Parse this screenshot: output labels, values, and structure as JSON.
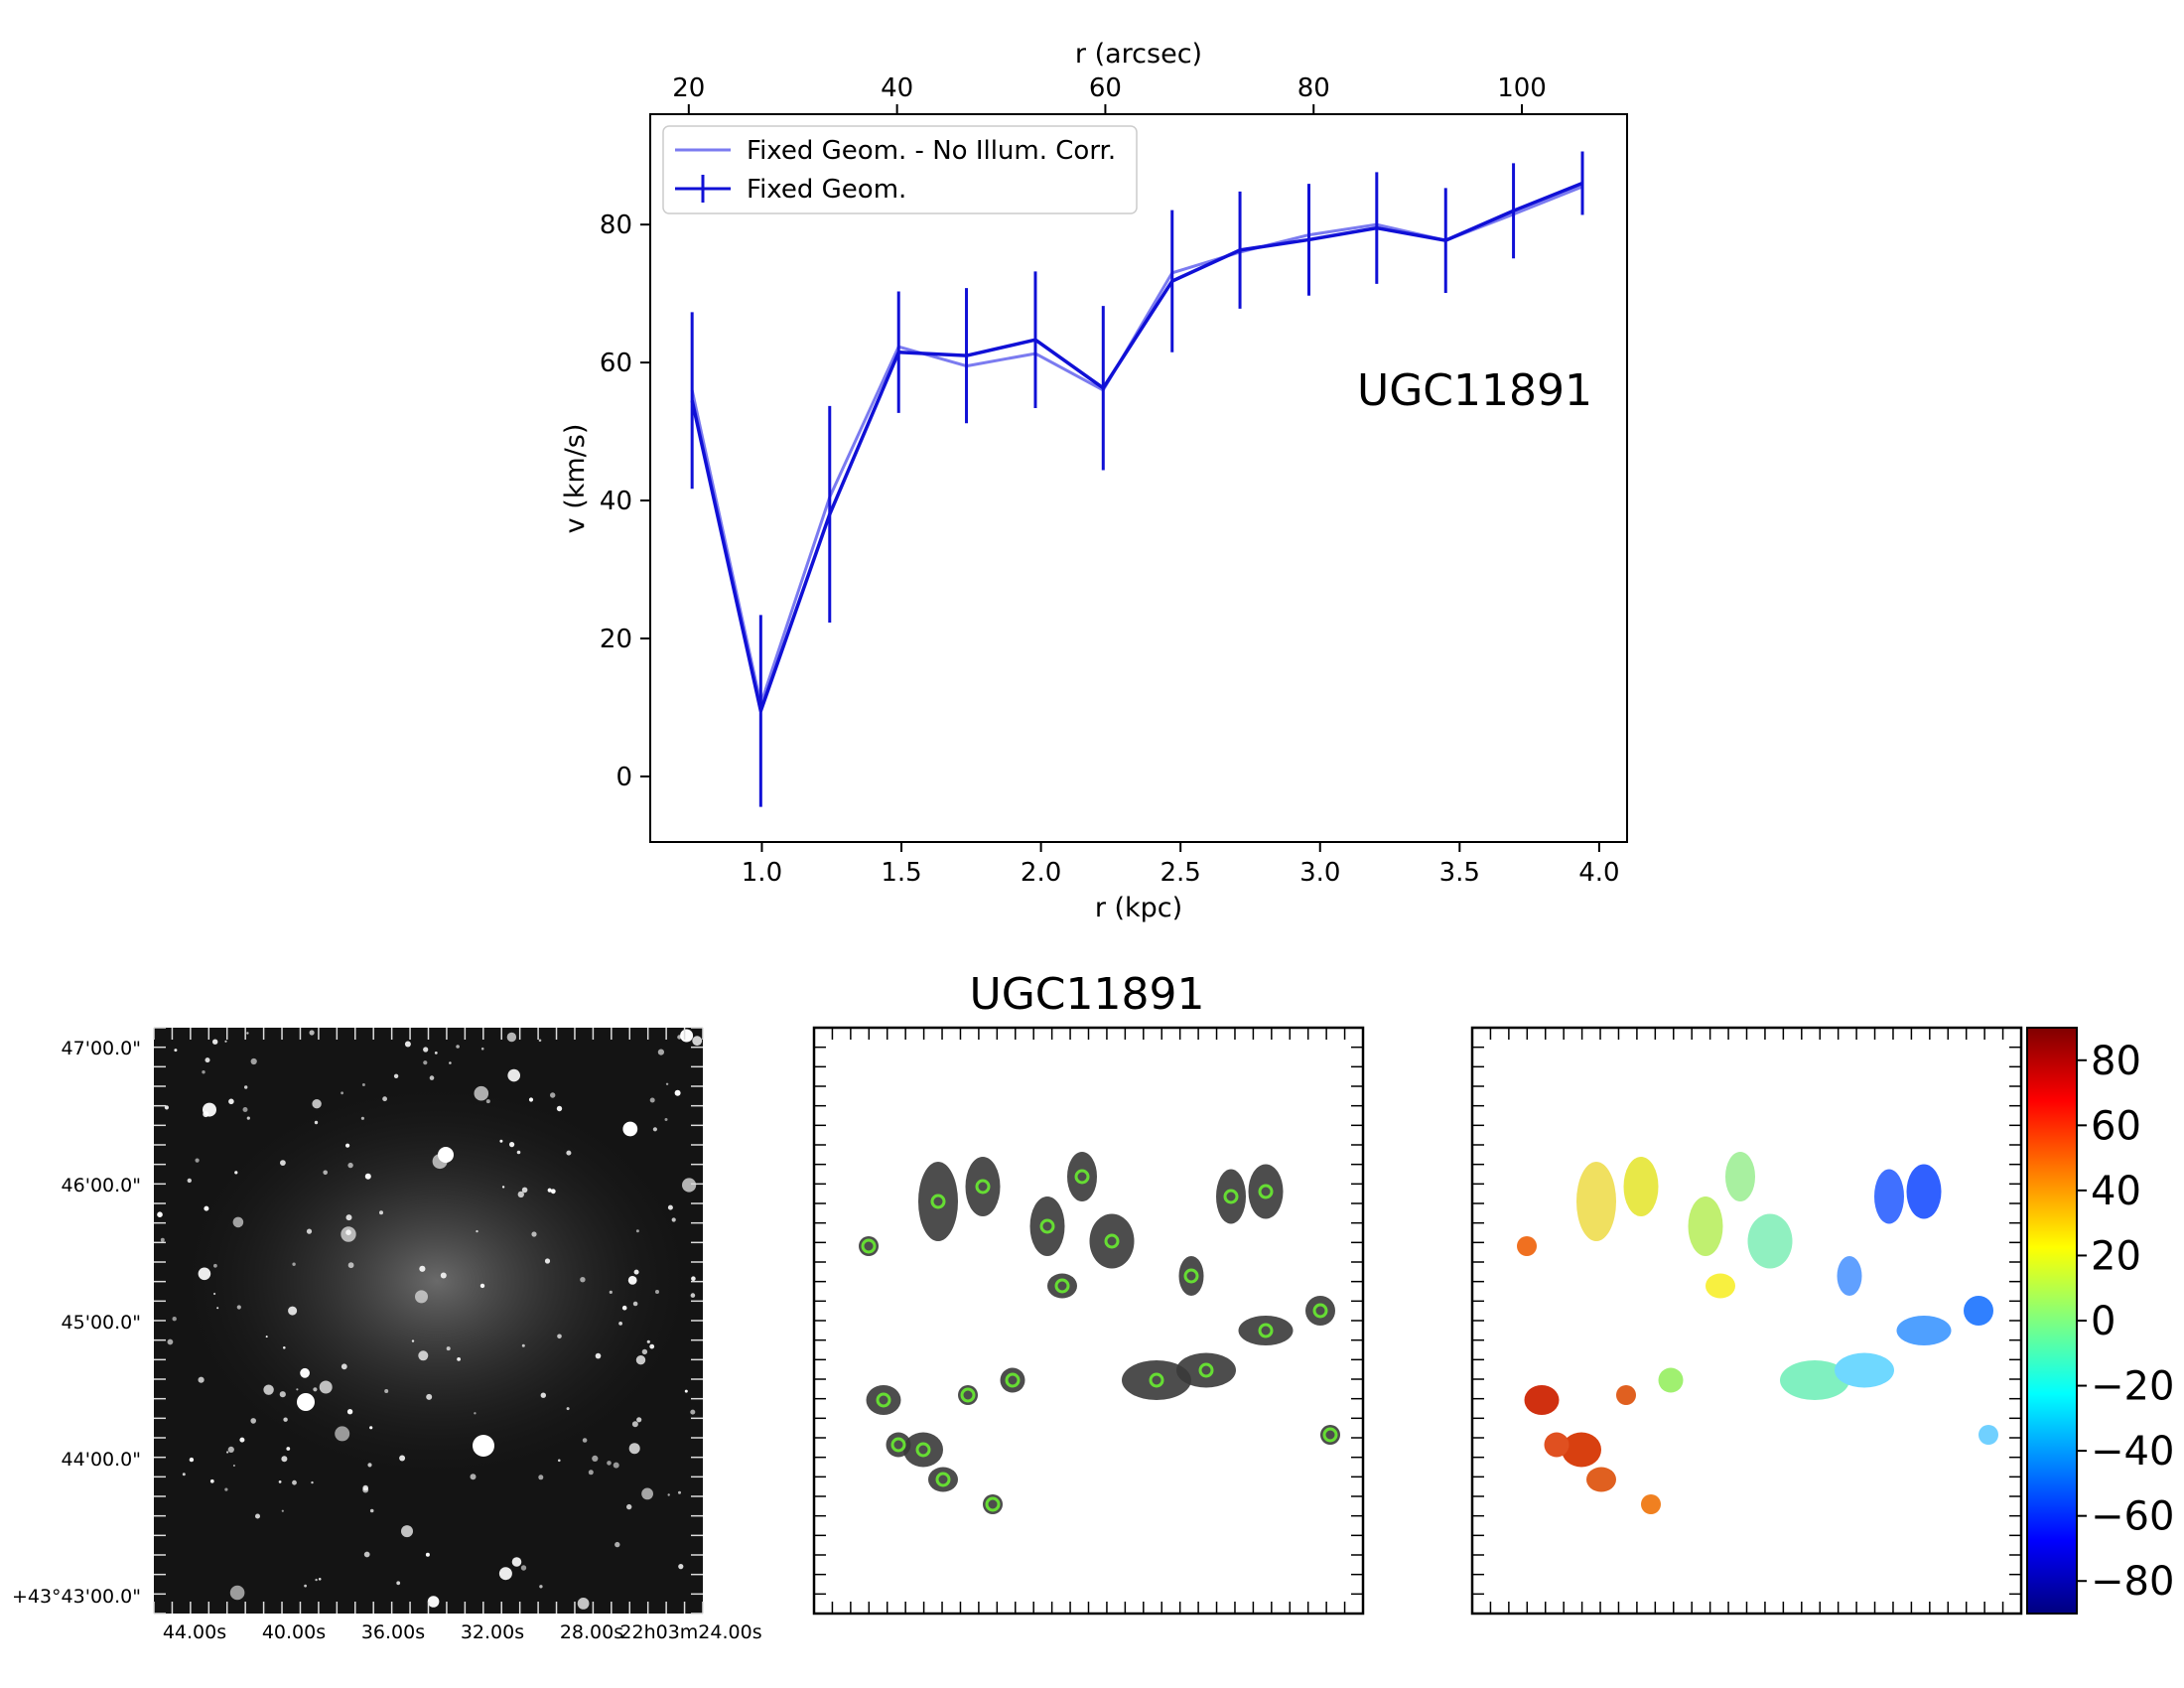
{
  "chart_data": [
    {
      "type": "line",
      "annotation": "UGC11891",
      "xlabel": "r (kpc)",
      "ylabel": "v (km/s)",
      "top_xlabel": "r (arcsec)",
      "xlim": [
        0.6,
        4.1
      ],
      "ylim": [
        -9.5,
        96
      ],
      "top_xlim": [
        16.3,
        110.1
      ],
      "x_ticks": [
        "1.0",
        "1.5",
        "2.0",
        "2.5",
        "3.0",
        "3.5",
        "4.0"
      ],
      "y_ticks": [
        "0",
        "20",
        "40",
        "60",
        "80"
      ],
      "top_x_ticks": [
        "20",
        "40",
        "60",
        "80",
        "100"
      ],
      "legend_position": "upper left",
      "series": [
        {
          "name": "Fixed Geom. - No Illum. Corr.",
          "color": "#7b7bf0",
          "x": [
            0.75,
            0.996,
            1.243,
            1.49,
            1.733,
            1.98,
            2.223,
            2.47,
            2.713,
            2.96,
            3.203,
            3.45,
            3.693,
            3.94
          ],
          "y": [
            56,
            10.5,
            40.5,
            62.3,
            59.5,
            61.3,
            56,
            73,
            76,
            78.5,
            80,
            77.7,
            81.5,
            85.5
          ]
        },
        {
          "name": "Fixed Geom.",
          "color": "#1010d6",
          "x": [
            0.75,
            0.996,
            1.243,
            1.49,
            1.733,
            1.98,
            2.223,
            2.47,
            2.713,
            2.96,
            3.203,
            3.45,
            3.693,
            3.94
          ],
          "y": [
            54.5,
            9.5,
            38,
            61.5,
            61,
            63.3,
            56.3,
            71.8,
            76.3,
            77.8,
            79.5,
            77.7,
            82,
            86
          ],
          "yerr": [
            12.8,
            13.9,
            15.7,
            8.8,
            9.8,
            9.9,
            11.9,
            10.3,
            8.5,
            8.1,
            8.1,
            7.6,
            6.9,
            4.6
          ]
        }
      ]
    },
    {
      "type": "other",
      "description_visible": "sky image",
      "xlabel_ticks": [
        "44.00s",
        "40.00s",
        "36.00s",
        "32.00s",
        "28.00s",
        "22h03m24.00s"
      ],
      "ylabel_ticks": [
        "47'00.0\"",
        "46'00.0\"",
        "45'00.0\"",
        "44'00.0\"",
        "+43°43'00.0\""
      ]
    },
    {
      "type": "other",
      "title": "UGC11891"
    },
    {
      "type": "heatmap",
      "colorbar_ticks": [
        "80",
        "60",
        "40",
        "20",
        "0",
        "−20",
        "−40",
        "−60",
        "−80"
      ],
      "colorbar_range": [
        -90,
        90
      ],
      "colormap": "jet"
    }
  ]
}
